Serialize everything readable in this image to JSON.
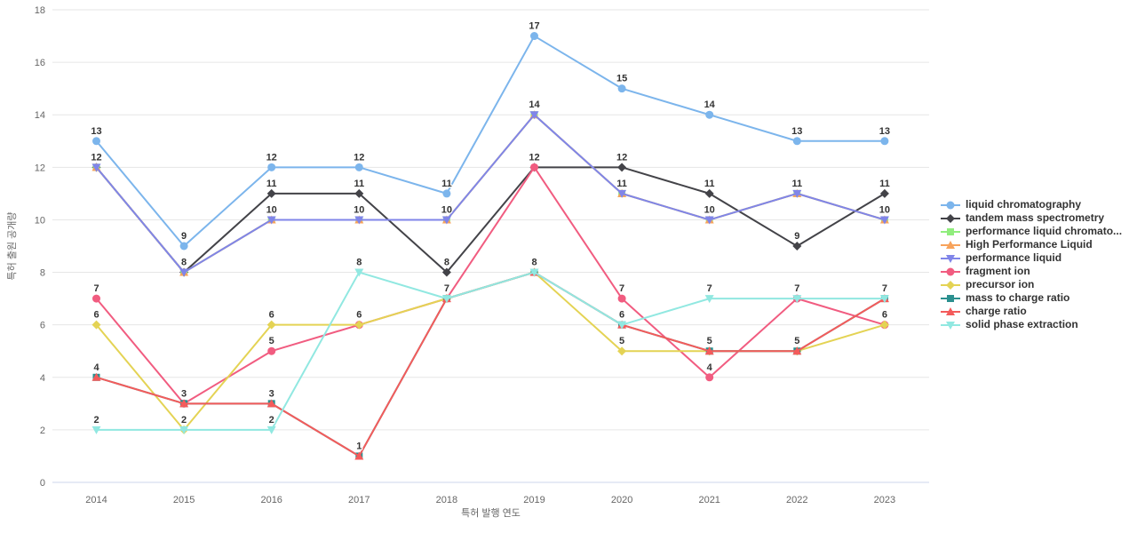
{
  "chart_data": {
    "type": "line",
    "categories": [
      "2014",
      "2015",
      "2016",
      "2017",
      "2018",
      "2019",
      "2020",
      "2021",
      "2022",
      "2023"
    ],
    "xlabel": "특허 발행 연도",
    "ylabel": "특허 출원 공개량",
    "ylim": [
      0,
      18
    ],
    "ytick_step": 2,
    "grid": true,
    "legend_position": "right",
    "data_labels": true,
    "grid_color": "#e6e6e6",
    "axis_line_color": "#ccd6eb",
    "tick_label_color": "#666666",
    "axis_title_color": "#666666",
    "data_label_color": "#333333",
    "legend_text_color": "#333333",
    "series": [
      {
        "name": "liquid chromatography",
        "color": "#7cb5ec",
        "marker": "circle",
        "values": [
          13,
          9,
          12,
          12,
          11,
          17,
          15,
          14,
          13,
          13
        ]
      },
      {
        "name": "tandem mass spectrometry",
        "color": "#434348",
        "marker": "diamond",
        "values": [
          12,
          8,
          11,
          11,
          8,
          12,
          12,
          11,
          9,
          11
        ]
      },
      {
        "name": "performance liquid chromato...",
        "color": "#90ed7d",
        "marker": "square",
        "values": [
          12,
          8,
          10,
          10,
          10,
          14,
          11,
          10,
          11,
          10
        ]
      },
      {
        "name": "High Performance Liquid",
        "color": "#f7a35c",
        "marker": "triangle",
        "values": [
          12,
          8,
          10,
          10,
          10,
          14,
          11,
          10,
          11,
          10
        ]
      },
      {
        "name": "performance liquid",
        "color": "#8085e9",
        "marker": "triangle-down",
        "values": [
          12,
          8,
          10,
          10,
          10,
          14,
          11,
          10,
          11,
          10
        ]
      },
      {
        "name": "fragment ion",
        "color": "#f15c80",
        "marker": "circle",
        "values": [
          7,
          3,
          5,
          6,
          7,
          12,
          7,
          4,
          7,
          6
        ]
      },
      {
        "name": "precursor ion",
        "color": "#e4d354",
        "marker": "diamond",
        "values": [
          6,
          2,
          6,
          6,
          7,
          8,
          5,
          5,
          5,
          6
        ]
      },
      {
        "name": "mass to charge ratio",
        "color": "#2b908f",
        "marker": "square",
        "values": [
          4,
          3,
          3,
          1,
          7,
          8,
          6,
          5,
          5,
          7
        ]
      },
      {
        "name": "charge ratio",
        "color": "#f45b5b",
        "marker": "triangle",
        "values": [
          4,
          3,
          3,
          1,
          7,
          8,
          6,
          5,
          5,
          7
        ]
      },
      {
        "name": "solid phase extraction",
        "color": "#91e8e1",
        "marker": "triangle-down",
        "values": [
          2,
          2,
          2,
          8,
          7,
          8,
          6,
          7,
          7,
          7
        ]
      }
    ]
  }
}
